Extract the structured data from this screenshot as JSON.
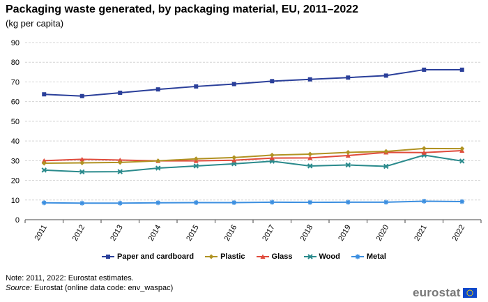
{
  "title": "Packaging waste generated, by packaging material, EU, 2011–2022",
  "subtitle": "(kg per capita)",
  "note": "Note: 2011, 2022: Eurostat estimates.",
  "source_label": "Source:",
  "source_text": " Eurostat (online data code: env_waspac)",
  "logo_text": "eurostat",
  "chart_data": {
    "type": "line",
    "title": "Packaging waste generated, by packaging material, EU, 2011–2022",
    "ylabel": "(kg per capita)",
    "xlabel": "",
    "ylim": [
      0,
      90
    ],
    "yticks": [
      0,
      10,
      20,
      30,
      40,
      50,
      60,
      70,
      80,
      90
    ],
    "categories": [
      "2011",
      "2012",
      "2013",
      "2014",
      "2015",
      "2016",
      "2017",
      "2018",
      "2019",
      "2020",
      "2021",
      "2022"
    ],
    "legend_position": "bottom",
    "series": [
      {
        "name": "Paper and cardboard",
        "color": "#2A3F9A",
        "marker": "square",
        "values": [
          63.7,
          62.8,
          64.5,
          66.2,
          67.7,
          68.9,
          70.4,
          71.3,
          72.2,
          73.2,
          76.2,
          76.2
        ]
      },
      {
        "name": "Plastic",
        "color": "#B09222",
        "marker": "diamond",
        "values": [
          28.7,
          28.9,
          29.1,
          29.9,
          30.9,
          31.6,
          32.8,
          33.3,
          34.2,
          34.7,
          36.2,
          36.1
        ]
      },
      {
        "name": "Glass",
        "color": "#E04B3C",
        "marker": "triangle",
        "values": [
          30.0,
          30.7,
          30.3,
          29.9,
          29.9,
          30.2,
          31.3,
          31.4,
          32.6,
          34.2,
          34.1,
          35.1
        ]
      },
      {
        "name": "Wood",
        "color": "#2A8A8C",
        "marker": "x",
        "values": [
          25.2,
          24.3,
          24.4,
          26.2,
          27.3,
          28.4,
          29.7,
          27.3,
          27.8,
          27.1,
          32.8,
          29.8
        ]
      },
      {
        "name": "Metal",
        "color": "#3C8FE0",
        "marker": "star",
        "values": [
          8.6,
          8.4,
          8.4,
          8.6,
          8.7,
          8.7,
          8.9,
          8.8,
          8.9,
          8.9,
          9.4,
          9.2
        ]
      }
    ]
  }
}
